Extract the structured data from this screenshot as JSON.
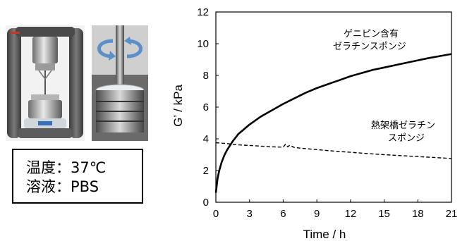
{
  "conditions": {
    "line1": "温度：37℃",
    "line2": "溶液：PBS"
  },
  "photos": {
    "rheometer_icon": "rheometer-photo",
    "closeup_icon": "rotating-plate-photo",
    "rotation_arrow_color": "#5b8fc9"
  },
  "chart_data": {
    "type": "line",
    "xlabel": "Time / h",
    "ylabel": "G’ / kPa",
    "xlim": [
      0,
      21
    ],
    "ylim": [
      0,
      12
    ],
    "xticks": [
      "0",
      "3",
      "6",
      "9",
      "12",
      "15",
      "18",
      "21"
    ],
    "yticks": [
      "0",
      "2",
      "4",
      "6",
      "8",
      "10",
      "12"
    ],
    "grid": false,
    "legend": "none",
    "series": [
      {
        "label_line1": "ゲニピン含有",
        "label_line2": "ゼラチンスポンジ",
        "style": "solid",
        "color": "#000000",
        "x": [
          0,
          0.15,
          0.3,
          0.5,
          0.75,
          1,
          1.5,
          2,
          2.5,
          3,
          4,
          5,
          6,
          7,
          8,
          9,
          10,
          11,
          12,
          13,
          14,
          15,
          16,
          17,
          18,
          19,
          20,
          21
        ],
        "y": [
          0.6,
          1.5,
          2.0,
          2.5,
          2.95,
          3.3,
          3.85,
          4.3,
          4.6,
          4.9,
          5.4,
          5.8,
          6.2,
          6.55,
          6.9,
          7.2,
          7.45,
          7.7,
          7.95,
          8.15,
          8.35,
          8.5,
          8.65,
          8.8,
          8.95,
          9.1,
          9.22,
          9.35
        ]
      },
      {
        "label_line1": "熱架橋ゼラチン",
        "label_line2": "スポンジ",
        "style": "dashed",
        "color": "#000000",
        "x": [
          0,
          1,
          2,
          3,
          4,
          5,
          6,
          6.2,
          6.4,
          6.6,
          7,
          8,
          9,
          10,
          11,
          12,
          13,
          14,
          15,
          16,
          17,
          18,
          19,
          20,
          21
        ],
        "y": [
          3.75,
          3.7,
          3.62,
          3.58,
          3.54,
          3.5,
          3.47,
          3.65,
          3.5,
          3.6,
          3.45,
          3.38,
          3.32,
          3.26,
          3.2,
          3.15,
          3.1,
          3.05,
          3.0,
          2.96,
          2.92,
          2.88,
          2.84,
          2.8,
          2.76
        ]
      }
    ]
  }
}
